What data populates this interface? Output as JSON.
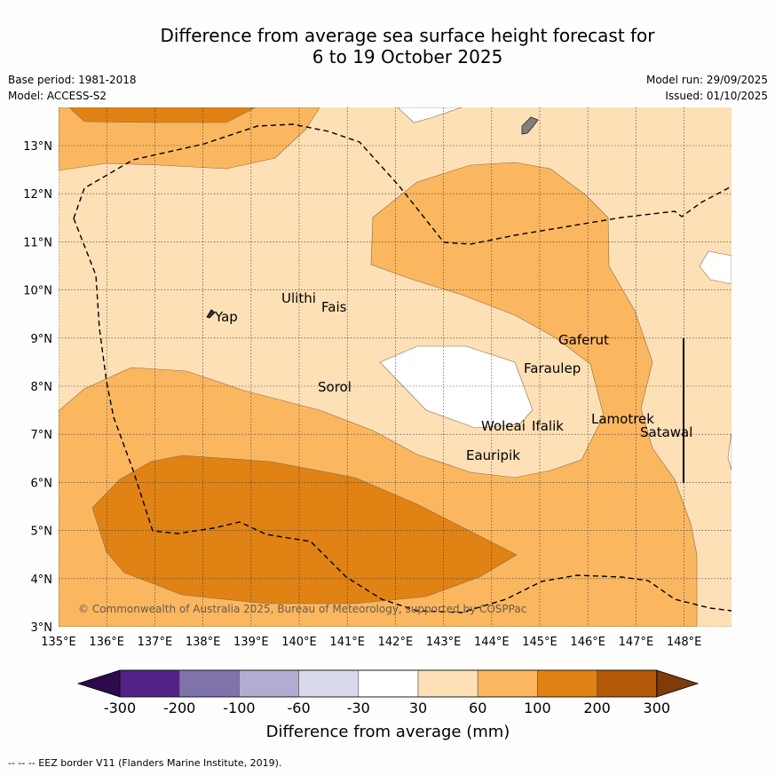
{
  "title_line1": "Difference from average sea surface height forecast for",
  "title_line2": "6 to 19 October 2025",
  "meta": {
    "base_period": "Base period: 1981-2018",
    "model": "Model: ACCESS-S2",
    "model_run": "Model run: 29/09/2025",
    "issued": "Issued: 01/10/2025"
  },
  "lon_ticks": [
    "135°E",
    "136°E",
    "137°E",
    "138°E",
    "139°E",
    "140°E",
    "141°E",
    "142°E",
    "143°E",
    "144°E",
    "145°E",
    "146°E",
    "147°E",
    "148°E"
  ],
  "lat_ticks": [
    "13°N",
    "12°N",
    "11°N",
    "10°N",
    "9°N",
    "8°N",
    "7°N",
    "6°N",
    "5°N",
    "4°N",
    "3°N"
  ],
  "places": [
    "Yap",
    "Ulithi",
    "Fais",
    "Gaferut",
    "Faraulep",
    "Sorol",
    "Woleai",
    "Ifalik",
    "Lamotrek",
    "Satawal",
    "Eauripik"
  ],
  "copyright": "© Commonwealth of Australia 2025, Bureau of Meteorology, supported by COSPPac",
  "legend": {
    "labels": [
      "-300",
      "-200",
      "-100",
      "-60",
      "-30",
      "30",
      "60",
      "100",
      "200",
      "300"
    ],
    "colors": [
      "#2d0a4b",
      "#542187",
      "#8073ac",
      "#b2abd2",
      "#d8daeb",
      "#ffffff",
      "#fee0b6",
      "#fbb760",
      "#e08214",
      "#b35806",
      "#7f3b08"
    ],
    "axis_label": "Difference from average (mm)"
  },
  "footnote": "--  --  -- EEZ border V11 (Flanders Marine Institute, 2019)."
}
